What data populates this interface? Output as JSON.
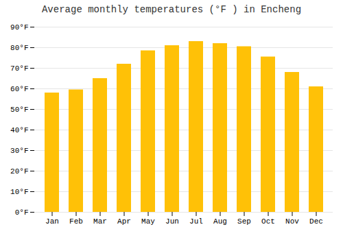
{
  "chart_data": {
    "type": "bar",
    "title": "Average monthly temperatures (°F ) in Encheng",
    "categories": [
      "Jan",
      "Feb",
      "Mar",
      "Apr",
      "May",
      "Jun",
      "Jul",
      "Aug",
      "Sep",
      "Oct",
      "Nov",
      "Dec"
    ],
    "values": [
      58,
      59.5,
      65,
      72,
      78.5,
      81,
      83,
      82,
      80.5,
      75.5,
      68,
      61
    ],
    "color": "#FFC107",
    "ylim": [
      0,
      90
    ],
    "yticks": [
      {
        "value": 0,
        "label": "0°F"
      },
      {
        "value": 10,
        "label": "10°F"
      },
      {
        "value": 20,
        "label": "20°F"
      },
      {
        "value": 30,
        "label": "30°F"
      },
      {
        "value": 40,
        "label": "40°F"
      },
      {
        "value": 50,
        "label": "50°F"
      },
      {
        "value": 60,
        "label": "60°F"
      },
      {
        "value": 70,
        "label": "70°F"
      },
      {
        "value": 80,
        "label": "80°F"
      },
      {
        "value": 90,
        "label": "90°F"
      }
    ],
    "grid": true
  }
}
